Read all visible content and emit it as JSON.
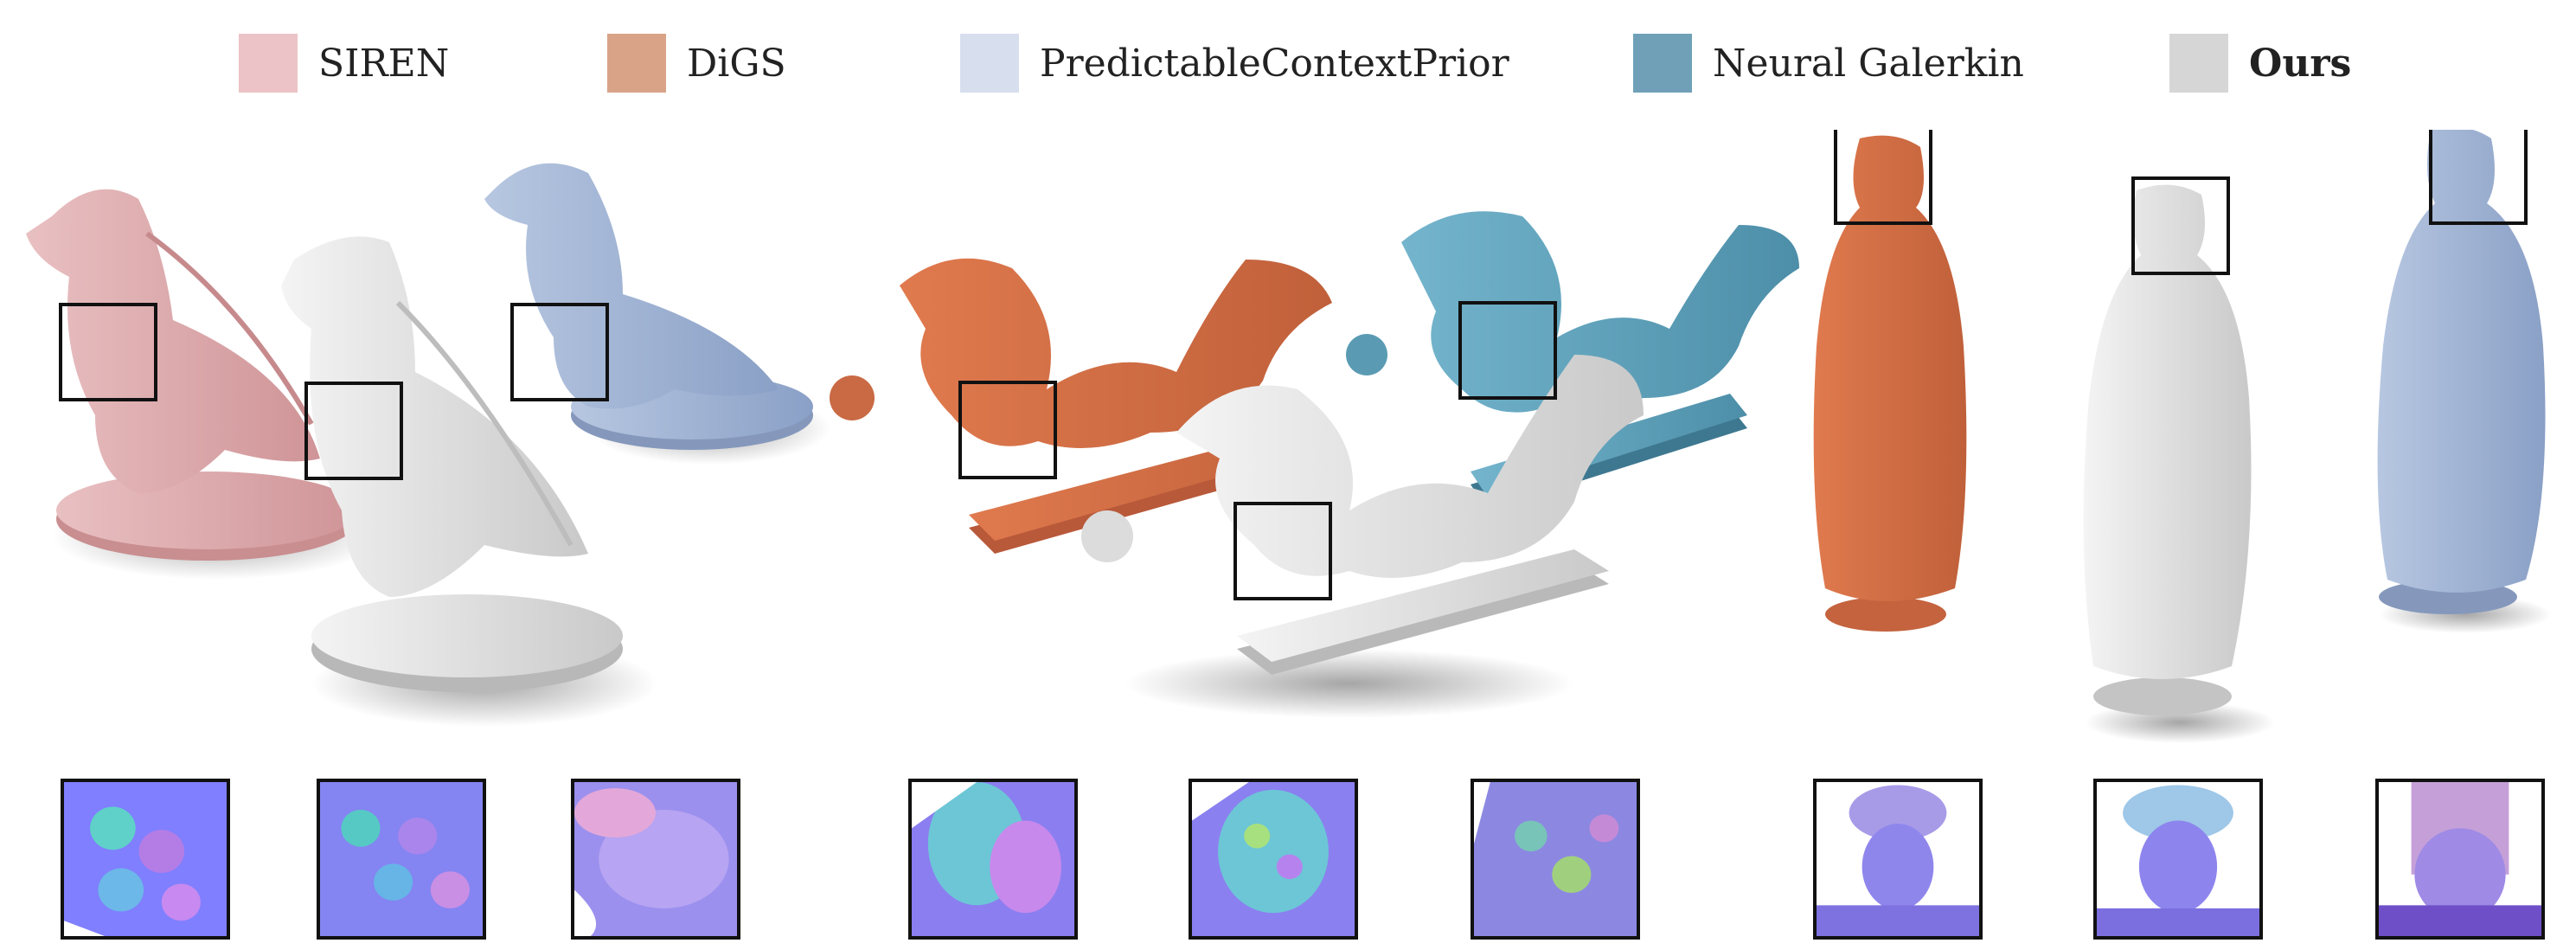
{
  "legend": {
    "items": [
      {
        "label": "SIREN",
        "color": "#ecc3c6",
        "bold": false
      },
      {
        "label": "DiGS",
        "color": "#d9a387",
        "bold": false
      },
      {
        "label": "PredictableContextPrior",
        "color": "#d7dfee",
        "bold": false
      },
      {
        "label": "Neural Galerkin",
        "color": "#6fa0b8",
        "bold": false
      },
      {
        "label": "Ours",
        "color": "#d6d6d6",
        "bold": true
      }
    ]
  },
  "scene": {
    "objects": [
      {
        "name": "eagle",
        "methods": [
          "SIREN",
          "Ours",
          "PredictableContextPrior"
        ]
      },
      {
        "name": "dragon",
        "methods": [
          "DiGS",
          "Ours",
          "Neural Galerkin"
        ]
      },
      {
        "name": "statue",
        "methods": [
          "DiGS",
          "Ours",
          "PredictableContextPrior"
        ]
      }
    ]
  },
  "insets": {
    "count": 9,
    "content": "normal-map-closeups"
  },
  "colors": {
    "siren": "#e4b7b8",
    "digs": "#d4744c",
    "pcp": "#9fb3d3",
    "ng": "#5ea3bd",
    "ours": "#e4e4e4"
  }
}
